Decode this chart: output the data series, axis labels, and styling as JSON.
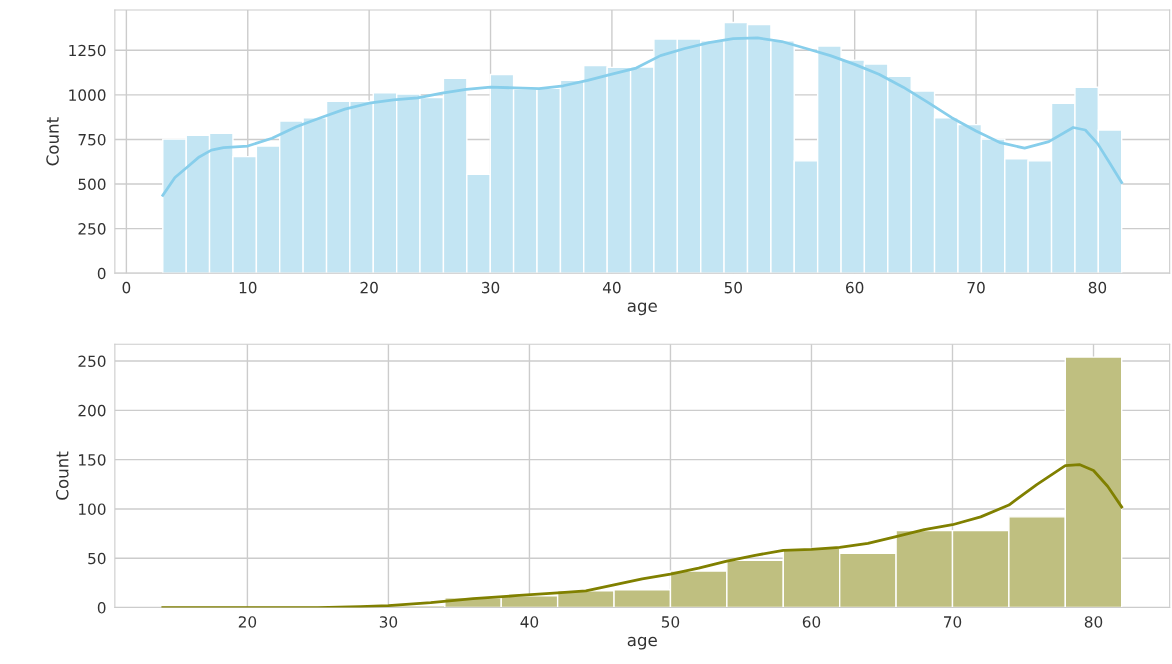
{
  "chart_data": [
    {
      "type": "histogram",
      "xlabel": "age",
      "ylabel": "Count",
      "color": "#c3e5f3",
      "grid": true,
      "bins": [
        3.0,
        4.93,
        6.85,
        8.78,
        10.71,
        12.63,
        14.56,
        16.49,
        18.41,
        20.34,
        22.27,
        24.19,
        26.12,
        28.05,
        29.98,
        31.9,
        33.83,
        35.76,
        37.68,
        39.61,
        41.54,
        43.46,
        45.39,
        47.32,
        49.24,
        51.17,
        53.1,
        55.02,
        56.95,
        58.88,
        60.8,
        62.73,
        64.66,
        66.58,
        68.51,
        70.44,
        72.37,
        74.29,
        76.22,
        78.15,
        80.07,
        82.0
      ],
      "values": [
        752,
        773,
        784,
        654,
        713,
        853,
        872,
        964,
        964,
        1012,
        1005,
        985,
        1093,
        554,
        1114,
        1033,
        1037,
        1081,
        1164,
        1154,
        1156,
        1313,
        1313,
        1303,
        1406,
        1394,
        1303,
        630,
        1274,
        1195,
        1173,
        1104,
        1022,
        872,
        833,
        752,
        642,
        630,
        953,
        1043,
        803
      ],
      "series": [
        {
          "type": "line",
          "color": "#87ceeb",
          "x": [
            3,
            4,
            5,
            6,
            7,
            8,
            10,
            12,
            14,
            16,
            18,
            20,
            22,
            24,
            26,
            28,
            30,
            32,
            34,
            36,
            38,
            40,
            42,
            44,
            46,
            48,
            50,
            52,
            54,
            56,
            58,
            60,
            62,
            64,
            66,
            68,
            70,
            72,
            74,
            76,
            78,
            79,
            80,
            81,
            82
          ],
          "values": [
            437,
            537,
            594,
            652,
            690,
            704,
            713,
            757,
            821,
            872,
            920,
            953,
            972,
            983,
            1010,
            1031,
            1043,
            1039,
            1035,
            1051,
            1081,
            1116,
            1150,
            1220,
            1260,
            1293,
            1315,
            1319,
            1299,
            1260,
            1220,
            1171,
            1116,
            1043,
            959,
            872,
            797,
            732,
            701,
            738,
            817,
            803,
            728,
            620,
            508
          ]
        }
      ],
      "xlim": [
        -0.95,
        85.95
      ],
      "xticks": [
        0,
        10,
        20,
        30,
        40,
        50,
        60,
        70,
        80
      ],
      "ylim": [
        0,
        1476
      ],
      "yticks": [
        0,
        250,
        500,
        750,
        1000,
        1250
      ]
    },
    {
      "type": "histogram",
      "xlabel": "age",
      "ylabel": "Count",
      "color": "#bfbf80",
      "grid": true,
      "bins": [
        14,
        18,
        22,
        26,
        30,
        34,
        38,
        42,
        46,
        50,
        54,
        58,
        62,
        66,
        70,
        74,
        78,
        82
      ],
      "values": [
        0,
        0,
        0,
        0,
        2,
        10,
        12,
        17,
        18,
        37,
        48,
        60,
        55,
        78,
        78,
        92,
        254
      ],
      "series": [
        {
          "type": "line",
          "color": "#808000",
          "x": [
            14,
            20,
            25,
            28,
            30,
            33,
            36,
            39,
            42,
            44,
            46,
            48,
            50,
            52,
            54,
            56,
            58,
            60,
            62,
            64,
            66,
            68,
            70,
            72,
            74,
            76,
            78,
            79,
            80,
            81,
            82
          ],
          "values": [
            0,
            0,
            0,
            1,
            2,
            5,
            9,
            12,
            15,
            17,
            23,
            29,
            34,
            40,
            47,
            53,
            58,
            59,
            61,
            65,
            72,
            79,
            84,
            92,
            104,
            125,
            144,
            145,
            139,
            123,
            102
          ]
        }
      ],
      "xlim": [
        10.6,
        85.4
      ],
      "xticks": [
        20,
        30,
        40,
        50,
        60,
        70,
        80
      ],
      "ylim": [
        0,
        267
      ],
      "yticks": [
        0,
        50,
        100,
        150,
        200,
        250
      ]
    }
  ]
}
